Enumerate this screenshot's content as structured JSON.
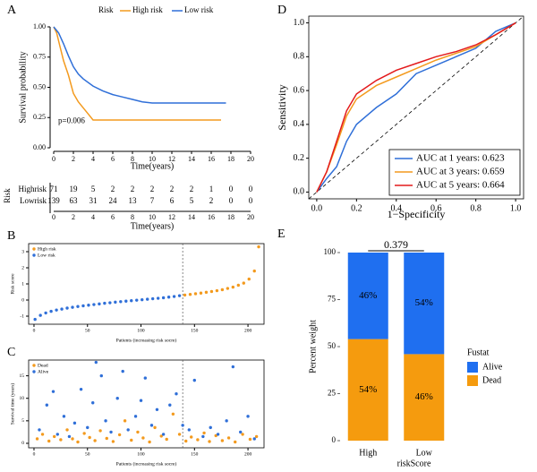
{
  "chart_data": [
    {
      "panel": "A",
      "type": "line",
      "legend": "top",
      "legend_title": "Risk",
      "xlabel": "Time(years)",
      "ylabel": "Survival probability",
      "annotation": "p=0.006",
      "xlim": [
        0,
        20
      ],
      "xticks": [
        0,
        2,
        4,
        6,
        8,
        10,
        12,
        14,
        16,
        18,
        20
      ],
      "ylim": [
        0,
        1
      ],
      "yticks": [
        {
          "value": 0,
          "label": "0.00"
        },
        {
          "value": 0.25,
          "label": "0.25"
        },
        {
          "value": 0.5,
          "label": "0.50"
        },
        {
          "value": 0.75,
          "label": "0.75"
        },
        {
          "value": 1,
          "label": "1.00"
        }
      ],
      "series": [
        {
          "name": "High risk",
          "color": "#f39a1e",
          "x": [
            0,
            0.3,
            0.6,
            1,
            1.5,
            2,
            2.5,
            3,
            3.5,
            4,
            17
          ],
          "values": [
            1,
            0.95,
            0.85,
            0.72,
            0.6,
            0.45,
            0.38,
            0.33,
            0.28,
            0.23,
            0.23
          ]
        },
        {
          "name": "Low risk",
          "color": "#2f6fd8",
          "x": [
            0,
            0.5,
            1,
            1.5,
            2,
            2.5,
            3,
            4,
            5,
            6,
            7,
            8,
            9,
            10,
            17.5
          ],
          "values": [
            1,
            0.95,
            0.86,
            0.76,
            0.67,
            0.61,
            0.57,
            0.51,
            0.47,
            0.44,
            0.42,
            0.4,
            0.38,
            0.37,
            0.37
          ]
        }
      ],
      "risk_table": {
        "title": "Risk",
        "xlabel": "Time(years)",
        "rows": [
          {
            "name": "Highrisk",
            "color": "#f39a1e",
            "values": [
              71,
              19,
              5,
              2,
              2,
              2,
              2,
              2,
              1,
              0,
              0
            ]
          },
          {
            "name": "Lowrisk",
            "color": "#2f6fd8",
            "values": [
              139,
              63,
              31,
              24,
              13,
              7,
              6,
              5,
              2,
              0,
              0
            ]
          }
        ]
      }
    },
    {
      "panel": "B",
      "type": "scatter",
      "legend": "top-left",
      "xlabel": "Patients (increasing risk socre)",
      "ylabel": "Risk score",
      "vline": 139,
      "xlim": [
        -5,
        215
      ],
      "xticks": [
        0,
        50,
        100,
        150,
        200
      ],
      "ylim": [
        -1.5,
        3.5
      ],
      "yticks": [
        -1,
        0,
        1,
        2,
        3
      ],
      "series": [
        {
          "name": "High risk",
          "color": "#f39a1e",
          "x": [
            141,
            146,
            151,
            156,
            161,
            166,
            171,
            176,
            181,
            186,
            191,
            196,
            201,
            206,
            210
          ],
          "values": [
            0.31,
            0.35,
            0.39,
            0.43,
            0.48,
            0.53,
            0.58,
            0.64,
            0.72,
            0.8,
            0.92,
            1.05,
            1.3,
            1.8,
            3.3
          ]
        },
        {
          "name": "Low risk",
          "color": "#2f6fd8",
          "x": [
            1,
            6,
            11,
            16,
            21,
            26,
            31,
            36,
            41,
            46,
            51,
            56,
            61,
            66,
            71,
            76,
            81,
            86,
            91,
            96,
            101,
            106,
            111,
            116,
            121,
            126,
            131,
            136
          ],
          "values": [
            -1.2,
            -0.95,
            -0.8,
            -0.7,
            -0.62,
            -0.56,
            -0.5,
            -0.45,
            -0.4,
            -0.36,
            -0.32,
            -0.28,
            -0.24,
            -0.2,
            -0.17,
            -0.13,
            -0.1,
            -0.07,
            -0.04,
            -0.01,
            0.02,
            0.05,
            0.08,
            0.11,
            0.14,
            0.18,
            0.22,
            0.27
          ]
        }
      ]
    },
    {
      "panel": "C",
      "type": "scatter",
      "legend": "top-left",
      "xlabel": "Patients (increasing risk socre)",
      "ylabel": "Survival time (years)",
      "vline": 139,
      "xlim": [
        -5,
        215
      ],
      "xticks": [
        0,
        50,
        100,
        150,
        200
      ],
      "ylim": [
        -1,
        18.5
      ],
      "yticks": [
        0,
        5,
        10,
        15
      ],
      "series": [
        {
          "name": "Dead",
          "color": "#f39a1e",
          "x": [
            3,
            8,
            14,
            19,
            25,
            31,
            36,
            41,
            47,
            52,
            57,
            62,
            68,
            74,
            80,
            85,
            91,
            97,
            102,
            108,
            113,
            119,
            124,
            130,
            136,
            142,
            147,
            153,
            159,
            164,
            170,
            176,
            182,
            188,
            195,
            202,
            208
          ],
          "values": [
            1,
            2,
            0.5,
            1.5,
            0.8,
            3,
            1,
            0.3,
            2.2,
            1.3,
            0.6,
            2.8,
            1.1,
            0.4,
            1.9,
            5,
            0.7,
            2.5,
            1.2,
            0.3,
            3.5,
            1.6,
            0.9,
            6.5,
            2,
            0.5,
            1.4,
            0.8,
            2.3,
            0.4,
            1.7,
            0.6,
            1.2,
            0.3,
            2,
            0.9,
            1.5
          ]
        },
        {
          "name": "Alive",
          "color": "#2f6fd8",
          "x": [
            5,
            12,
            18,
            22,
            28,
            33,
            38,
            44,
            50,
            55,
            58,
            63,
            67,
            72,
            78,
            83,
            88,
            95,
            100,
            104,
            110,
            115,
            121,
            127,
            133,
            139,
            145,
            150,
            158,
            165,
            172,
            180,
            186,
            193,
            200,
            206
          ],
          "values": [
            3,
            8.5,
            11.5,
            2,
            6,
            1.5,
            4.5,
            12,
            3.5,
            9,
            18,
            15,
            5,
            2.5,
            10,
            16,
            3,
            6,
            9.5,
            14.5,
            4,
            7.5,
            2,
            8.5,
            11,
            4,
            3,
            14,
            1.5,
            3.5,
            2,
            5,
            17,
            2.5,
            6,
            1
          ]
        }
      ]
    },
    {
      "panel": "D",
      "type": "line",
      "legend": "bottom-right",
      "xlabel": "1−Specificity",
      "ylabel": "Sensitivity",
      "diagonal": true,
      "xlim": [
        -0.04,
        1.04
      ],
      "xticks": [
        {
          "value": 0,
          "label": "0.0"
        },
        {
          "value": 0.2,
          "label": "0.2"
        },
        {
          "value": 0.4,
          "label": "0.4"
        },
        {
          "value": 0.6,
          "label": "0.6"
        },
        {
          "value": 0.8,
          "label": "0.8"
        },
        {
          "value": 1,
          "label": "1.0"
        }
      ],
      "ylim": [
        -0.04,
        1.04
      ],
      "yticks": [
        {
          "value": 0,
          "label": "0.0"
        },
        {
          "value": 0.2,
          "label": "0.2"
        },
        {
          "value": 0.4,
          "label": "0.4"
        },
        {
          "value": 0.6,
          "label": "0.6"
        },
        {
          "value": 0.8,
          "label": "0.8"
        },
        {
          "value": 1,
          "label": "1.0"
        }
      ],
      "series": [
        {
          "name": "AUC at 1 years: 0.623",
          "color": "#2f6fd8",
          "x": [
            0,
            0.05,
            0.1,
            0.15,
            0.2,
            0.3,
            0.4,
            0.5,
            0.6,
            0.7,
            0.8,
            0.9,
            1
          ],
          "values": [
            0,
            0.08,
            0.15,
            0.3,
            0.4,
            0.5,
            0.58,
            0.7,
            0.75,
            0.8,
            0.85,
            0.95,
            1
          ]
        },
        {
          "name": "AUC at 3 years: 0.659",
          "color": "#f39a1e",
          "x": [
            0,
            0.05,
            0.1,
            0.15,
            0.2,
            0.3,
            0.4,
            0.5,
            0.6,
            0.7,
            0.8,
            0.9,
            1
          ],
          "values": [
            0,
            0.12,
            0.28,
            0.45,
            0.55,
            0.63,
            0.68,
            0.73,
            0.78,
            0.82,
            0.86,
            0.93,
            1
          ]
        },
        {
          "name": "AUC at 5 years: 0.664",
          "color": "#e31a1c",
          "x": [
            0,
            0.05,
            0.1,
            0.15,
            0.2,
            0.3,
            0.4,
            0.5,
            0.6,
            0.7,
            0.8,
            0.9,
            1
          ],
          "values": [
            0,
            0.12,
            0.3,
            0.48,
            0.58,
            0.66,
            0.72,
            0.76,
            0.8,
            0.83,
            0.87,
            0.93,
            1
          ]
        }
      ]
    },
    {
      "panel": "E",
      "type": "bar",
      "legend": "right",
      "legend_title": "Fustat",
      "title": "0.379",
      "xlabel": "riskScore",
      "ylabel": "Percent weight",
      "categories": [
        "High",
        "Low"
      ],
      "ylim": [
        0,
        100
      ],
      "yticks": [
        0,
        25,
        50,
        75,
        100
      ],
      "series": [
        {
          "name": "Dead",
          "color": "#f59b0e",
          "values": [
            54,
            46
          ],
          "value_labels": [
            "54%",
            "46%"
          ]
        },
        {
          "name": "Alive",
          "color": "#1f6ff0",
          "values": [
            46,
            54
          ],
          "value_labels": [
            "46%",
            "54%"
          ]
        }
      ]
    }
  ]
}
